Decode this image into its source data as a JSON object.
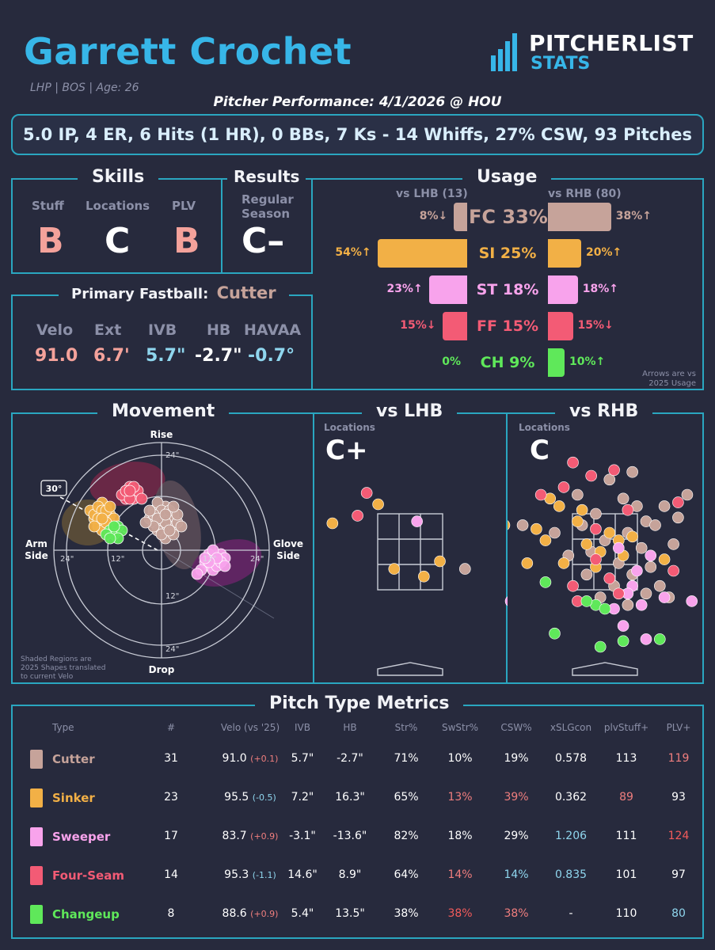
{
  "header": {
    "name": "Garrett Crochet",
    "meta": "LHP | BOS | Age: 26",
    "logo_top": "PITCHERLIST",
    "logo_bottom": "STATS",
    "performance_title": "Pitcher Performance: 4/1/2026 @ HOU",
    "summary": "5.0 IP, 4 ER, 6 Hits (1 HR), 0 BBs, 7 Ks - 14 Whiffs, 27% CSW, 93 Pitches"
  },
  "colors": {
    "border": "#2aa6c0",
    "cutter": "#c6a39a",
    "sinker": "#f2b046",
    "sweeper": "#f8a3ec",
    "fourseam": "#f35b75",
    "changeup": "#5fe85a",
    "good_red": "#f07e7e",
    "bad_blue": "#8fd6ee"
  },
  "skills": {
    "title": "Skills",
    "stuff_label": "Stuff",
    "stuff": "B",
    "locations_label": "Locations",
    "locations": "C",
    "plv_label": "PLV",
    "plv": "B"
  },
  "results": {
    "title": "Results",
    "season_line1": "Regular",
    "season_line2": "Season",
    "grade": "C–"
  },
  "primary": {
    "label": "Primary Fastball:",
    "pitch": "Cutter",
    "headers": [
      "Velo",
      "Ext",
      "IVB",
      "HB",
      "HAVAA"
    ],
    "values": [
      "91.0",
      "6.7'",
      "5.7\"",
      "-2.7\"",
      "-0.7°"
    ]
  },
  "usage": {
    "title": "Usage",
    "lhb_label": "vs LHB (13)",
    "rhb_label": "vs RHB (80)",
    "note_line1": "Arrows are vs",
    "note_line2": "2025 Usage",
    "rows": [
      {
        "label": "FC 33%",
        "lhb": "8%↓",
        "rhb": "38%↑",
        "lhb_pct": 8,
        "rhb_pct": 38,
        "color": "#c6a39a"
      },
      {
        "label": "SI 25%",
        "lhb": "54%↑",
        "rhb": "20%↑",
        "lhb_pct": 54,
        "rhb_pct": 20,
        "color": "#f2b046"
      },
      {
        "label": "ST 18%",
        "lhb": "23%↑",
        "rhb": "18%↑",
        "lhb_pct": 23,
        "rhb_pct": 18,
        "color": "#f8a3ec"
      },
      {
        "label": "FF 15%",
        "lhb": "15%↓",
        "rhb": "15%↓",
        "lhb_pct": 15,
        "rhb_pct": 15,
        "color": "#f35b75"
      },
      {
        "label": "CH 9%",
        "lhb": "0%",
        "rhb": "10%↑",
        "lhb_pct": 0,
        "rhb_pct": 10,
        "color": "#5fe85a"
      }
    ]
  },
  "movement": {
    "title": "Movement",
    "rise": "Rise",
    "drop": "Drop",
    "arm_side_1": "Arm",
    "arm_side_2": "Side",
    "glove_side_1": "Glove",
    "glove_side_2": "Side",
    "ring_24": "24\"",
    "ring_12": "12\"",
    "angle_label": "30°",
    "note_1": "Shaded Regions are",
    "note_2": "2025 Shapes translated",
    "note_3": "to current Velo"
  },
  "locations": {
    "lhb_title": "vs LHB",
    "rhb_title": "vs RHB",
    "label": "Locations",
    "lhb_grade": "C+",
    "rhb_grade": "C"
  },
  "metrics": {
    "title": "Pitch Type Metrics",
    "headers": [
      "Type",
      "#",
      "Velo (vs '25)",
      "IVB",
      "HB",
      "Str%",
      "SwStr%",
      "CSW%",
      "xSLGcon",
      "plvStuff+",
      "PLV+"
    ],
    "rows": [
      {
        "name": "Cutter",
        "color": "#c6a39a",
        "n": "31",
        "velo": "91.0",
        "vdiff": "(+0.1)",
        "ivb": "5.7\"",
        "hb": "-2.7\"",
        "str": "71%",
        "swstr": "10%",
        "csw": "19%",
        "xslg": "0.578",
        "stuff": "113",
        "plv": "119"
      },
      {
        "name": "Sinker",
        "color": "#f2b046",
        "n": "23",
        "velo": "95.5",
        "vdiff": "(-0.5)",
        "ivb": "7.2\"",
        "hb": "16.3\"",
        "str": "65%",
        "swstr": "13%",
        "csw": "39%",
        "xslg": "0.362",
        "stuff": "89",
        "plv": "93"
      },
      {
        "name": "Sweeper",
        "color": "#f8a3ec",
        "n": "17",
        "velo": "83.7",
        "vdiff": "(+0.9)",
        "ivb": "-3.1\"",
        "hb": "-13.6\"",
        "str": "82%",
        "swstr": "18%",
        "csw": "29%",
        "xslg": "1.206",
        "stuff": "111",
        "plv": "124"
      },
      {
        "name": "Four-Seam",
        "color": "#f35b75",
        "n": "14",
        "velo": "95.3",
        "vdiff": "(-1.1)",
        "ivb": "14.6\"",
        "hb": "8.9\"",
        "str": "64%",
        "swstr": "14%",
        "csw": "14%",
        "xslg": "0.835",
        "stuff": "101",
        "plv": "97"
      },
      {
        "name": "Changeup",
        "color": "#5fe85a",
        "n": "8",
        "velo": "88.6",
        "vdiff": "(+0.9)",
        "ivb": "5.4\"",
        "hb": "13.5\"",
        "str": "38%",
        "swstr": "38%",
        "csw": "38%",
        "xslg": "-",
        "stuff": "110",
        "plv": "80"
      }
    ]
  },
  "chart_data": [
    {
      "type": "scatter",
      "title": "Movement",
      "xlabel": "",
      "ylabel": "",
      "xlim": [
        -28,
        28
      ],
      "ylim": [
        -28,
        28
      ],
      "series": [
        {
          "name": "Cutter",
          "color": "#c6a39a",
          "points": [
            [
              -2,
              10
            ],
            [
              -1,
              9
            ],
            [
              0,
              8
            ],
            [
              1,
              11
            ],
            [
              -2,
              7
            ],
            [
              2,
              6
            ],
            [
              0,
              6
            ],
            [
              -1,
              12
            ],
            [
              3,
              9
            ],
            [
              -3,
              8
            ],
            [
              1,
              5
            ],
            [
              2,
              8
            ],
            [
              -1,
              5
            ],
            [
              3,
              6
            ],
            [
              0,
              10
            ],
            [
              4,
              7
            ],
            [
              1,
              7
            ],
            [
              -2,
              9
            ],
            [
              2,
              10
            ],
            [
              -3,
              10
            ],
            [
              1,
              3
            ],
            [
              0,
              4
            ],
            [
              3,
              4
            ],
            [
              5,
              6
            ],
            [
              -1,
              8
            ],
            [
              2,
              5
            ],
            [
              4,
              9
            ],
            [
              -2,
              6
            ],
            [
              3,
              11
            ],
            [
              1,
              9
            ],
            [
              -4,
              7
            ]
          ]
        },
        {
          "name": "Sinker",
          "color": "#f2b046",
          "points": [
            [
              -16,
              10
            ],
            [
              -15,
              9
            ],
            [
              -14,
              11
            ],
            [
              -17,
              8
            ],
            [
              -15,
              7
            ],
            [
              -13,
              9
            ],
            [
              -16,
              6
            ],
            [
              -14,
              8
            ],
            [
              -18,
              10
            ],
            [
              -15,
              12
            ],
            [
              -13,
              7
            ],
            [
              -17,
              9
            ],
            [
              -14,
              6
            ],
            [
              -16,
              11
            ],
            [
              -15,
              10
            ],
            [
              -12,
              8
            ],
            [
              -14,
              10
            ],
            [
              -16,
              8
            ],
            [
              -15,
              5
            ],
            [
              -13,
              11
            ],
            [
              -17,
              6
            ],
            [
              -14,
              7
            ],
            [
              -15,
              8
            ]
          ]
        },
        {
          "name": "Sweeper",
          "color": "#f8a3ec",
          "points": [
            [
              13,
              -2
            ],
            [
              14,
              -3
            ],
            [
              12,
              -4
            ],
            [
              15,
              -1
            ],
            [
              13,
              -5
            ],
            [
              16,
              -2
            ],
            [
              11,
              -3
            ],
            [
              14,
              -4
            ],
            [
              12,
              -1
            ],
            [
              15,
              -3
            ],
            [
              13,
              0
            ],
            [
              10,
              -5
            ],
            [
              14,
              -2
            ],
            [
              16,
              -4
            ],
            [
              12,
              -3
            ],
            [
              11,
              -2
            ],
            [
              9,
              -6
            ]
          ]
        },
        {
          "name": "Four-Seam",
          "color": "#f35b75",
          "points": [
            [
              -9,
              15
            ],
            [
              -8,
              14
            ],
            [
              -7,
              15
            ],
            [
              -9,
              13
            ],
            [
              -6,
              14
            ],
            [
              -8,
              16
            ],
            [
              -7,
              13
            ],
            [
              -10,
              14
            ],
            [
              -6,
              15
            ],
            [
              -8,
              13
            ],
            [
              -7,
              16
            ],
            [
              -9,
              15
            ],
            [
              -5,
              13
            ],
            [
              -8,
              15
            ]
          ]
        },
        {
          "name": "Changeup",
          "color": "#5fe85a",
          "points": [
            [
              -13,
              5
            ],
            [
              -11,
              6
            ],
            [
              -12,
              4
            ],
            [
              -10,
              5
            ],
            [
              -14,
              4
            ],
            [
              -11,
              3
            ],
            [
              -12,
              6
            ],
            [
              -13,
              3
            ]
          ]
        }
      ]
    },
    {
      "type": "scatter",
      "title": "vs LHB",
      "xlabel": "",
      "ylabel": "",
      "xlim": [
        -2.4,
        2.4
      ],
      "ylim": [
        0,
        5
      ],
      "series": [
        {
          "name": "Cutter",
          "color": "#c6a39a",
          "points": [
            [
              1.2,
              2.05
            ]
          ]
        },
        {
          "name": "Sinker",
          "color": "#f2b046",
          "points": [
            [
              -2.4,
              4.35
            ],
            [
              -1.7,
              3.25
            ],
            [
              -0.7,
              3.75
            ],
            [
              -2.4,
              3.0
            ],
            [
              -0.35,
              2.05
            ],
            [
              0.3,
              1.85
            ],
            [
              0.65,
              2.25
            ]
          ]
        },
        {
          "name": "Sweeper",
          "color": "#f8a3ec",
          "points": [
            [
              0.15,
              3.3
            ],
            [
              2.2,
              1.2
            ],
            [
              2.45,
              1.05
            ]
          ]
        },
        {
          "name": "Four-Seam",
          "color": "#f35b75",
          "points": [
            [
              -0.95,
              4.05
            ],
            [
              -1.15,
              3.45
            ]
          ]
        }
      ]
    },
    {
      "type": "scatter",
      "title": "vs RHB",
      "xlabel": "",
      "ylabel": "",
      "xlim": [
        -2.4,
        2.4
      ],
      "ylim": [
        0,
        5
      ],
      "series": [
        {
          "name": "Cutter",
          "color": "#c6a39a",
          "points": [
            [
              0.1,
              4.4
            ],
            [
              0.6,
              4.6
            ],
            [
              1.3,
              3.7
            ],
            [
              1.8,
              4.0
            ],
            [
              0.9,
              3.3
            ],
            [
              -0.2,
              3.5
            ],
            [
              0.5,
              3.0
            ],
            [
              1.1,
              3.2
            ],
            [
              -0.5,
              3.2
            ],
            [
              0.0,
              2.8
            ],
            [
              0.8,
              2.6
            ],
            [
              1.5,
              2.7
            ],
            [
              -0.3,
              2.5
            ],
            [
              0.3,
              2.2
            ],
            [
              1.0,
              2.1
            ],
            [
              -0.8,
              2.4
            ],
            [
              0.6,
              1.9
            ],
            [
              1.2,
              1.6
            ],
            [
              -0.4,
              1.9
            ],
            [
              0.2,
              1.6
            ],
            [
              0.9,
              1.4
            ],
            [
              1.4,
              1.3
            ],
            [
              -0.1,
              1.3
            ],
            [
              0.5,
              1.1
            ],
            [
              -1.1,
              3.0
            ],
            [
              -1.8,
              3.2
            ],
            [
              0.4,
              3.9
            ],
            [
              -0.6,
              4.0
            ],
            [
              1.6,
              3.4
            ],
            [
              0.7,
              3.7
            ]
          ]
        },
        {
          "name": "Sinker",
          "color": "#f2b046",
          "points": [
            [
              -2.4,
              3.75
            ],
            [
              -1.5,
              3.1
            ],
            [
              -1.0,
              3.7
            ],
            [
              -0.5,
              3.6
            ],
            [
              -1.3,
              2.8
            ],
            [
              -0.1,
              2.5
            ],
            [
              0.3,
              2.8
            ],
            [
              -0.9,
              2.2
            ],
            [
              -0.2,
              2.1
            ],
            [
              -2.2,
              3.2
            ],
            [
              -1.7,
              2.2
            ],
            [
              0.6,
              2.9
            ],
            [
              1.3,
              2.3
            ],
            [
              -0.6,
              3.3
            ],
            [
              0.1,
              3.0
            ],
            [
              -1.2,
              3.9
            ],
            [
              0.4,
              2.4
            ],
            [
              -0.4,
              2.7
            ]
          ]
        },
        {
          "name": "Sweeper",
          "color": "#f8a3ec",
          "points": [
            [
              0.3,
              2.6
            ],
            [
              0.6,
              1.6
            ],
            [
              0.8,
              1.1
            ],
            [
              1.3,
              1.3
            ],
            [
              0.2,
              1.0
            ],
            [
              0.5,
              1.4
            ],
            [
              1.9,
              1.2
            ],
            [
              2.4,
              0.8
            ],
            [
              0.9,
              0.2
            ],
            [
              0.4,
              0.55
            ],
            [
              1.0,
              2.4
            ],
            [
              0.7,
              2.0
            ]
          ]
        },
        {
          "name": "Four-Seam",
          "color": "#f35b75",
          "points": [
            [
              -0.7,
              4.85
            ],
            [
              -0.3,
              4.5
            ],
            [
              0.2,
              4.65
            ],
            [
              -0.9,
              4.2
            ],
            [
              0.5,
              3.6
            ],
            [
              -1.4,
              4.0
            ],
            [
              1.6,
              3.8
            ],
            [
              -0.2,
              3.1
            ],
            [
              -0.7,
              1.6
            ],
            [
              0.1,
              1.8
            ],
            [
              -0.2,
              2.3
            ],
            [
              1.5,
              2.0
            ],
            [
              0.3,
              1.4
            ],
            [
              -0.6,
              1.2
            ]
          ]
        },
        {
          "name": "Changeup",
          "color": "#5fe85a",
          "points": [
            [
              -1.3,
              1.7
            ],
            [
              -0.2,
              1.1
            ],
            [
              0.0,
              1.0
            ],
            [
              -0.4,
              1.2
            ],
            [
              -1.1,
              0.35
            ],
            [
              0.4,
              0.15
            ],
            [
              1.2,
              0.2
            ],
            [
              -0.1,
              0.0
            ]
          ]
        }
      ]
    }
  ]
}
